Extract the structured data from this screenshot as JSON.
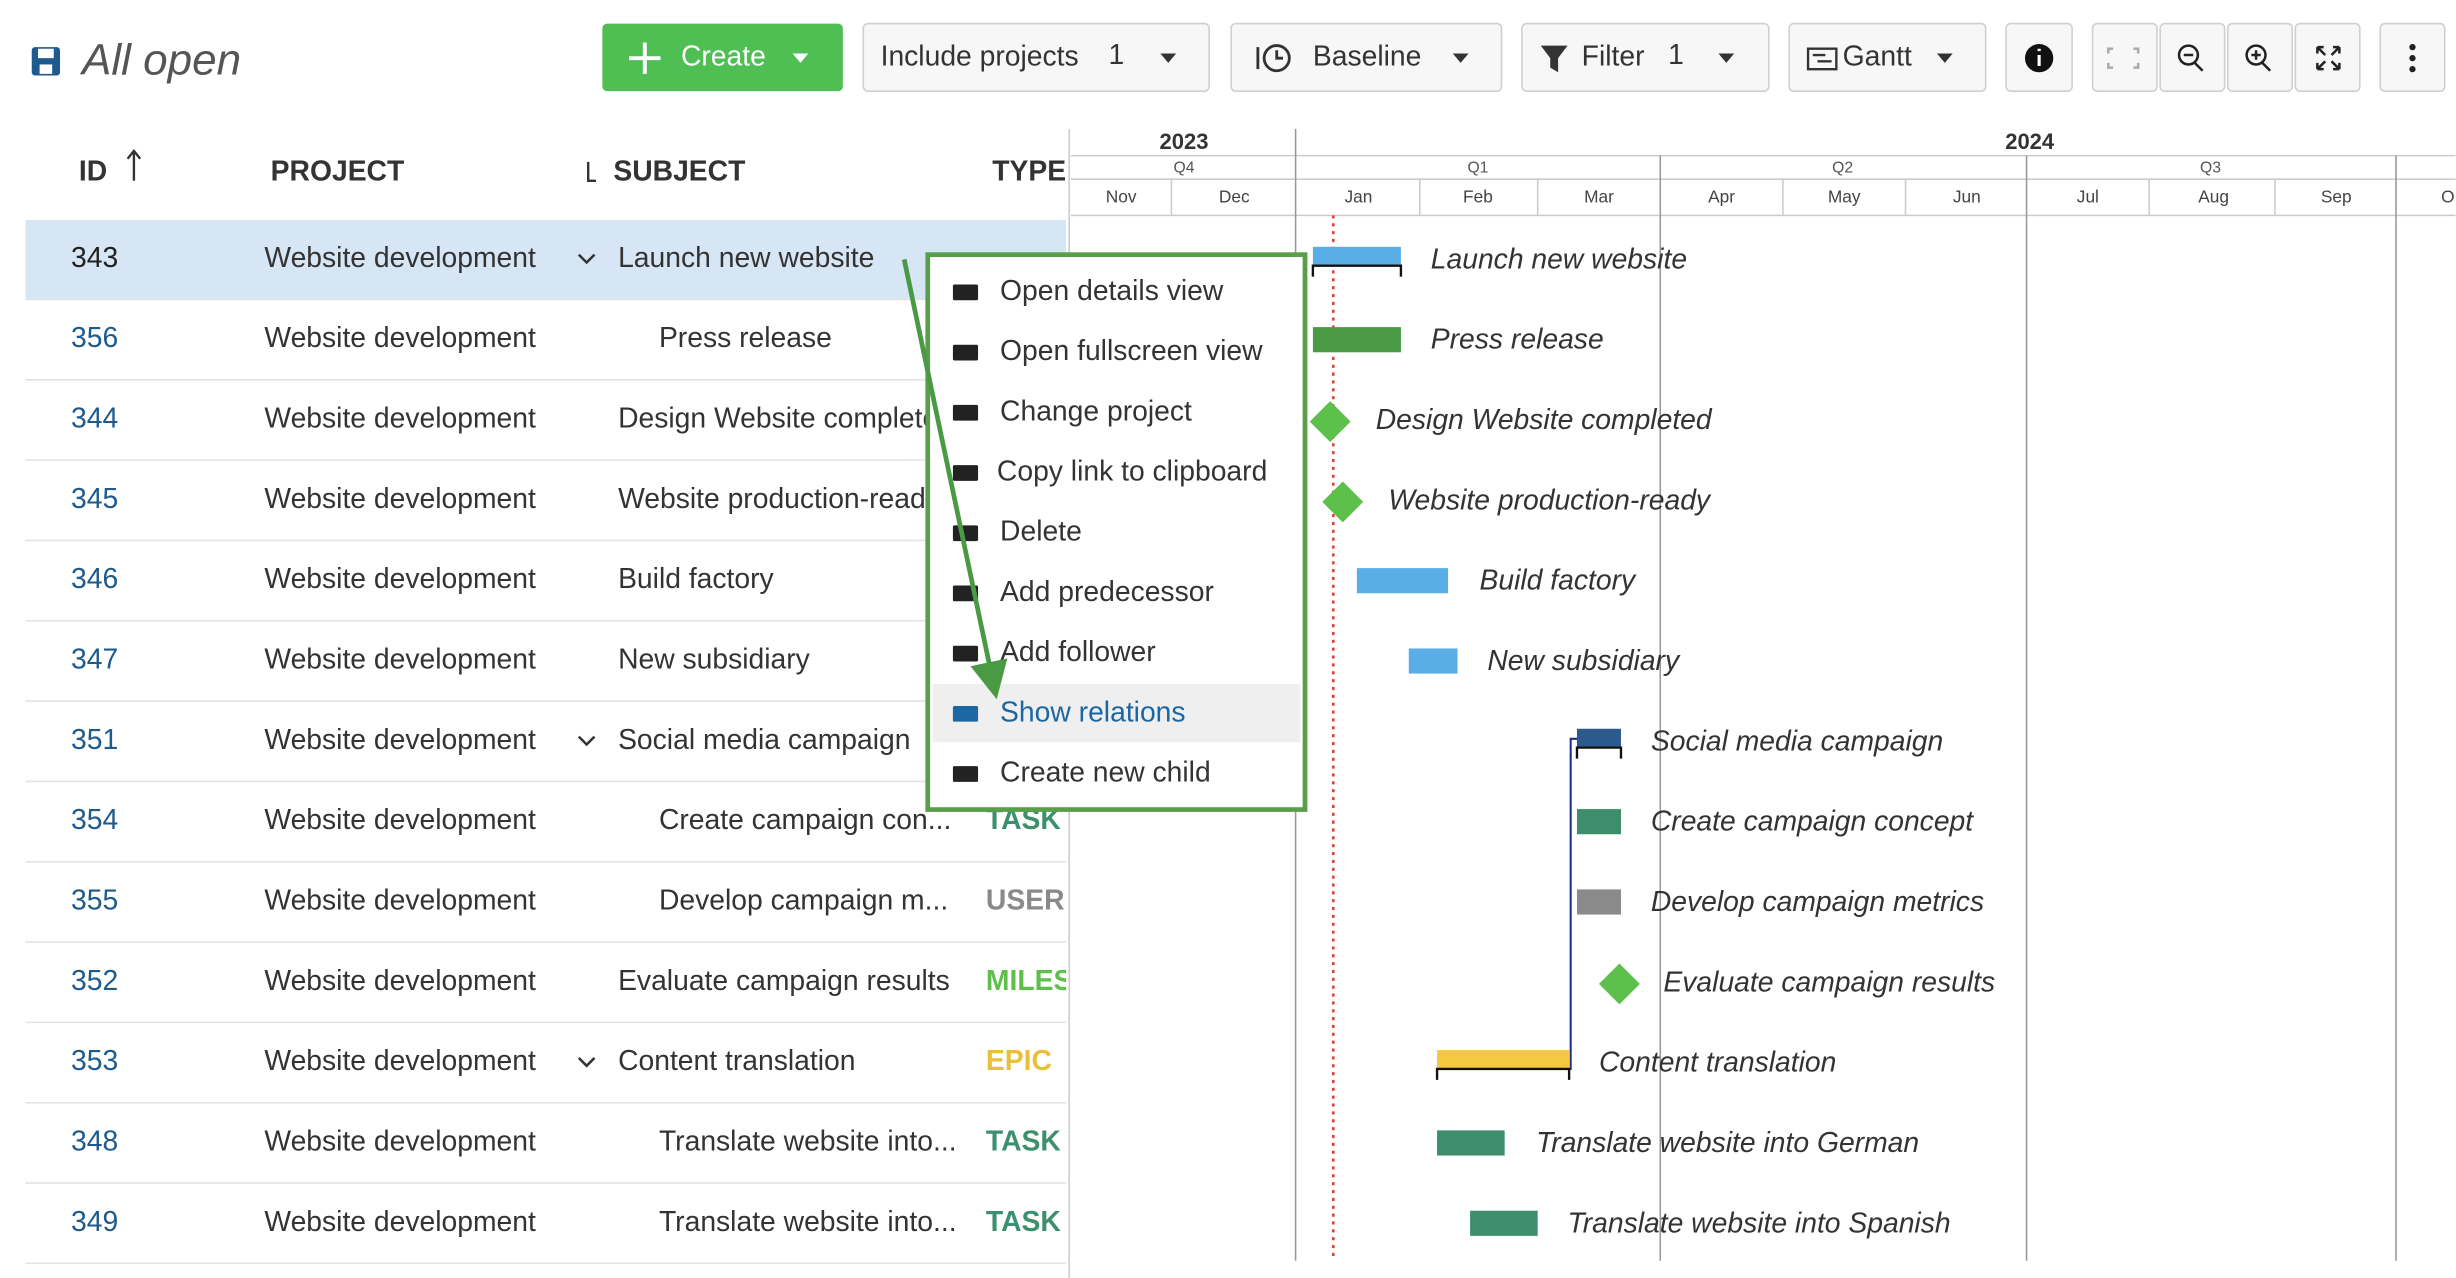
{
  "toolbar": {
    "title": "All open",
    "create": "Create",
    "include_projects": {
      "label": "Include projects",
      "count": 1
    },
    "baseline": "Baseline",
    "filter": {
      "label": "Filter",
      "count": 1
    },
    "view": "Gantt"
  },
  "table": {
    "headers": [
      "ID",
      "PROJECT",
      "SUBJECT",
      "TYPE"
    ],
    "rows": [
      {
        "id": 343,
        "project": "Website development",
        "subject": "Launch new website",
        "type": null
      },
      {
        "id": 356,
        "project": "Website development",
        "subject": "Press release",
        "type": null
      },
      {
        "id": 344,
        "project": "Website development",
        "subject": "Design Website completed",
        "type": null
      },
      {
        "id": 345,
        "project": "Website development",
        "subject": "Website production-ready",
        "type": null
      },
      {
        "id": 346,
        "project": "Website development",
        "subject": "Build factory",
        "type": null
      },
      {
        "id": 347,
        "project": "Website development",
        "subject": "New subsidiary",
        "type": null
      },
      {
        "id": 351,
        "project": "Website development",
        "subject": "Social media campaign",
        "type": null
      },
      {
        "id": 354,
        "project": "Website development",
        "subject": "Create campaign con...",
        "type": "TASK"
      },
      {
        "id": 355,
        "project": "Website development",
        "subject": "Develop campaign m...",
        "type": "USER"
      },
      {
        "id": 352,
        "project": "Website development",
        "subject": "Evaluate campaign results",
        "type": "MILES"
      },
      {
        "id": 353,
        "project": "Website development",
        "subject": "Content translation",
        "type": "EPIC"
      },
      {
        "id": 348,
        "project": "Website development",
        "subject": "Translate website into...",
        "type": "TASK"
      },
      {
        "id": 349,
        "project": "Website development",
        "subject": "Translate website into...",
        "type": "TASK"
      }
    ]
  },
  "context_menu": {
    "items": [
      {
        "label": "Open details view"
      },
      {
        "label": "Open fullscreen view"
      },
      {
        "label": "Change project"
      },
      {
        "label": "Copy link to clipboard"
      },
      {
        "label": "Delete"
      },
      {
        "label": "Add predecessor"
      },
      {
        "label": "Add follower"
      },
      {
        "label": "Show relations",
        "active": true
      },
      {
        "label": "Create new child"
      }
    ]
  },
  "gantt": {
    "years": [
      "2023",
      "2024"
    ],
    "quarters": [
      "Q4",
      "Q1",
      "Q2",
      "Q3"
    ],
    "months": [
      "Nov",
      "Dec",
      "Jan",
      "Feb",
      "Mar",
      "Apr",
      "May",
      "Jun",
      "Jul",
      "Aug",
      "Sep",
      "O"
    ],
    "bar_labels": [
      "Launch new website",
      "Press release",
      "Design Website completed",
      "Website production-ready",
      "Build factory",
      "New subsidiary",
      "Social media campaign",
      "Create campaign concept",
      "Develop campaign metrics",
      "Evaluate campaign results",
      "Content translation",
      "Translate website into German",
      "Translate website into Spanish"
    ]
  }
}
